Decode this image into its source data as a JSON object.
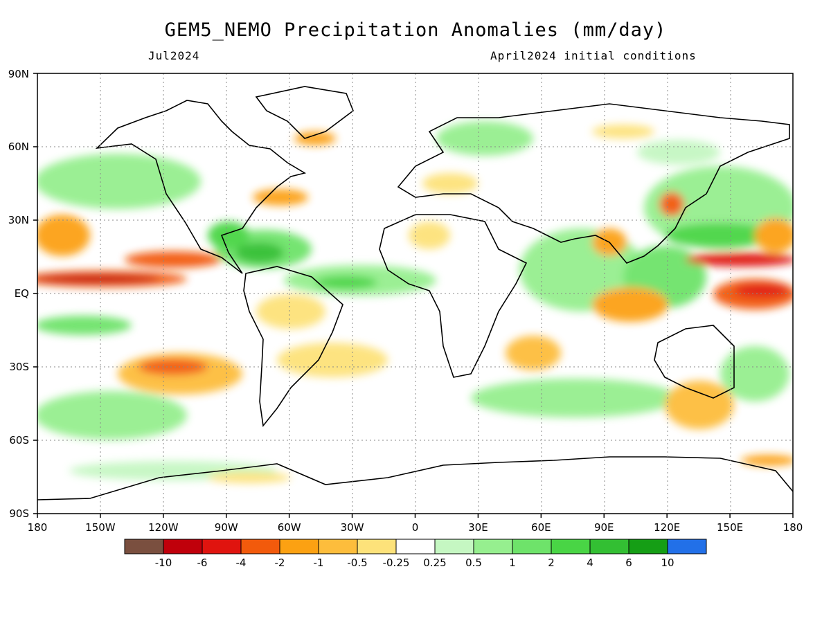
{
  "header": {
    "title": "GEM5_NEMO Precipitation Anomalies (mm/day)",
    "left_subtitle": "Jul2024",
    "right_subtitle": "April2024 initial conditions"
  },
  "axes": {
    "lat_labels": [
      "90N",
      "60N",
      "30N",
      "EQ",
      "30S",
      "60S",
      "90S"
    ],
    "lat_values": [
      90,
      60,
      30,
      0,
      -30,
      -60,
      -90
    ],
    "lon_labels": [
      "180",
      "150W",
      "120W",
      "90W",
      "60W",
      "30W",
      "0",
      "30E",
      "60E",
      "90E",
      "120E",
      "150E",
      "180"
    ],
    "lon_values": [
      -180,
      -150,
      -120,
      -90,
      -60,
      -30,
      0,
      30,
      60,
      90,
      120,
      150,
      180
    ]
  },
  "legend": {
    "colors": [
      "#7a4f3f",
      "#c0000b",
      "#e0140f",
      "#f25a0c",
      "#fca112",
      "#fdbd3c",
      "#fde27a",
      "#ffffff",
      "#c5f7c2",
      "#96ef8f",
      "#6ee36a",
      "#49d545",
      "#33bf33",
      "#159e15",
      "#2270e8"
    ],
    "tick_labels": [
      "-10",
      "-6",
      "-4",
      "-2",
      "-1",
      "-0.5",
      "-0.25",
      "0.25",
      "0.5",
      "1",
      "2",
      "4",
      "6",
      "10"
    ]
  },
  "colors": {
    "land_outline": "#000000",
    "gridline": "#888888"
  }
}
